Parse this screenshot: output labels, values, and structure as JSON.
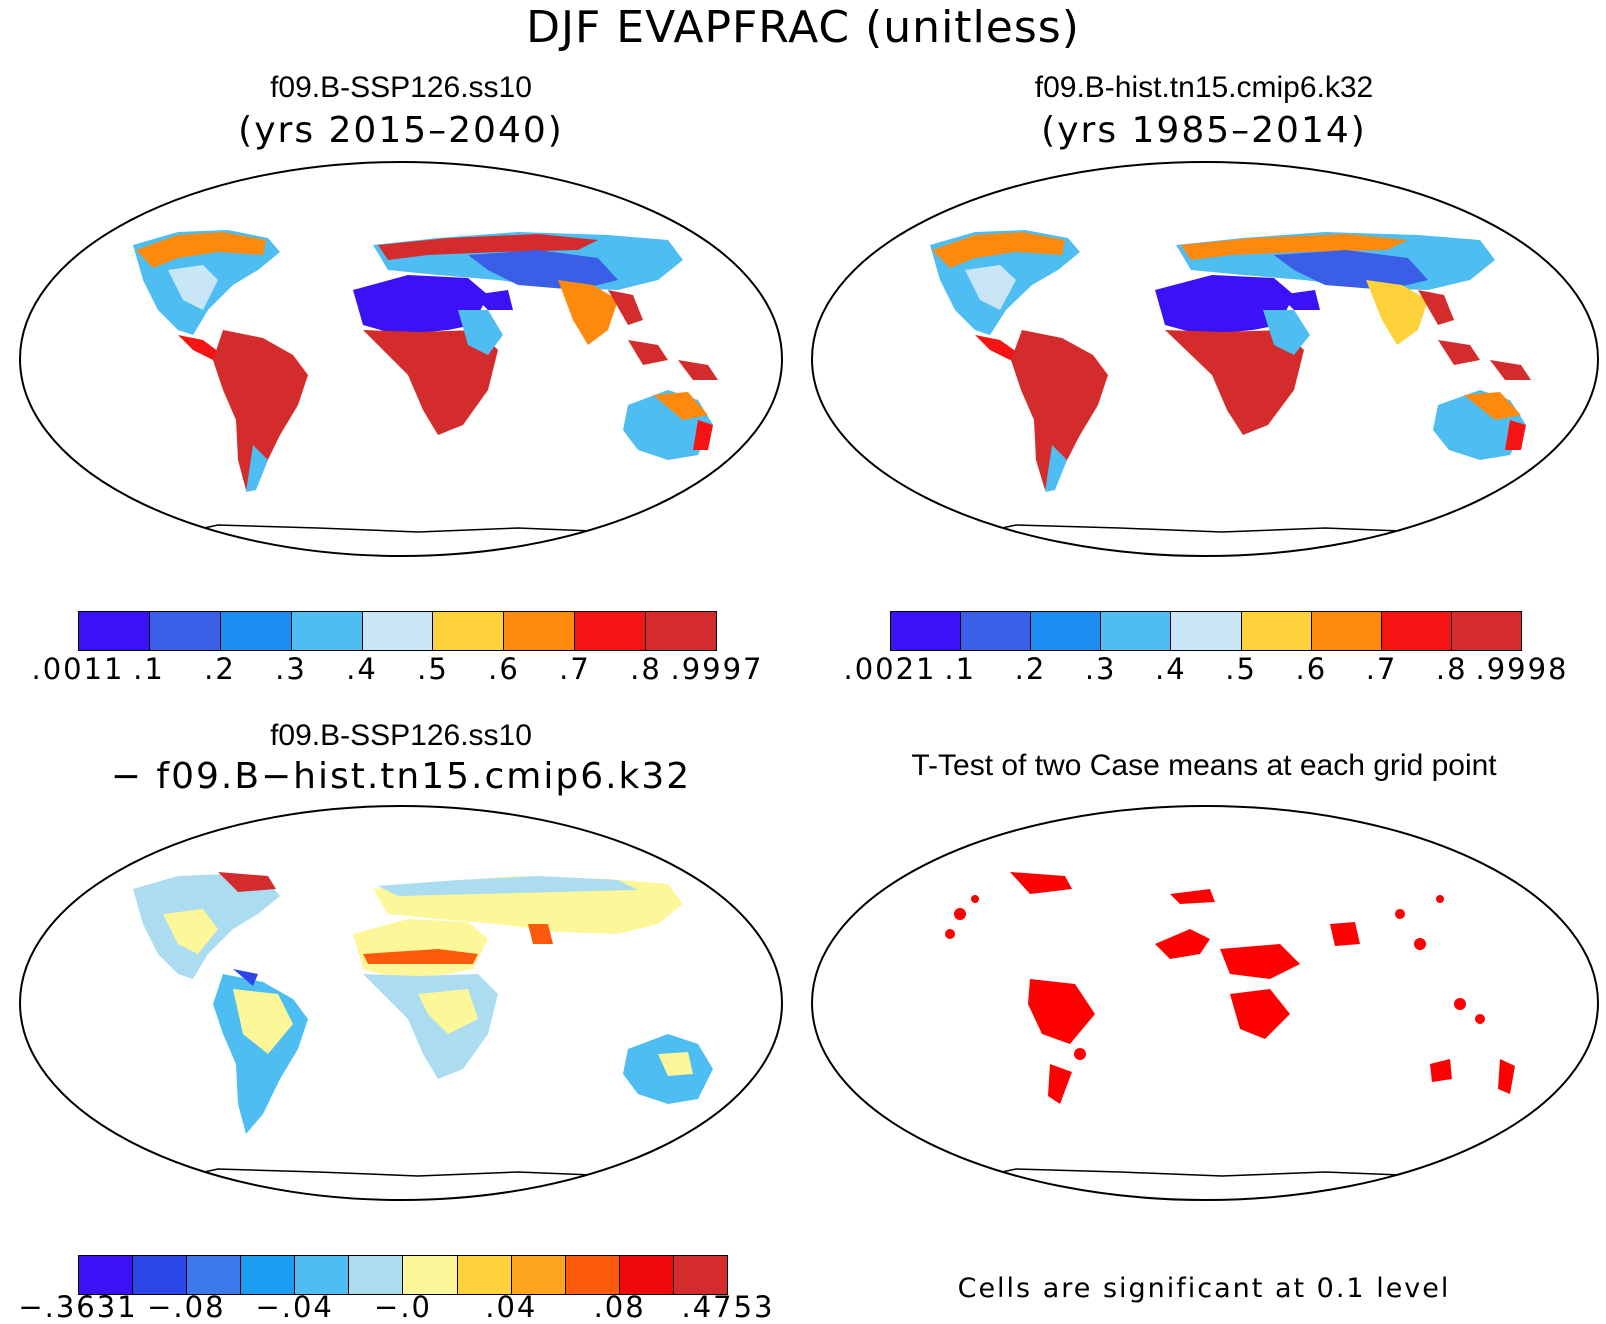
{
  "figure": {
    "title": "DJF EVAPFRAC (unitless)"
  },
  "panels": [
    {
      "id": "case",
      "title": "f09.B-SSP126.ss10",
      "subtitle": "(yrs 2015–2040)",
      "colorbar": {
        "colors": [
          "#3a12f5",
          "#3a5fe6",
          "#1a8ef2",
          "#4dbdf2",
          "#c8e6f5",
          "#fdd23a",
          "#fd8a0c",
          "#f51414",
          "#d42c2c"
        ],
        "labels": [
          ".0011",
          ".1",
          ".2",
          ".3",
          ".4",
          ".5",
          ".6",
          ".7",
          ".8",
          ".9997"
        ]
      }
    },
    {
      "id": "reference",
      "title": "f09.B-hist.tn15.cmip6.k32",
      "subtitle": "(yrs 1985–2014)",
      "colorbar": {
        "colors": [
          "#3a12f5",
          "#3a5fe6",
          "#1a8ef2",
          "#4dbdf2",
          "#c8e6f5",
          "#fdd23a",
          "#fd8a0c",
          "#f51414",
          "#d42c2c"
        ],
        "labels": [
          ".0021",
          ".1",
          ".2",
          ".3",
          ".4",
          ".5",
          ".6",
          ".7",
          ".8",
          ".9998"
        ]
      }
    },
    {
      "id": "difference",
      "title": "f09.B-SSP126.ss10",
      "subtitle": "− f09.B−hist.tn15.cmip6.k32",
      "colorbar": {
        "colors": [
          "#3a12f5",
          "#2a46e8",
          "#3a78ec",
          "#1a9cf2",
          "#4dbdf2",
          "#acdcf0",
          "#fdf79a",
          "#fdd23a",
          "#fda51c",
          "#fd5a0c",
          "#ee0a0a",
          "#d42c2c"
        ],
        "labels": [
          "−.3631",
          "−.08",
          "−.04",
          "−.0",
          ".04",
          ".08",
          ".4753"
        ]
      }
    },
    {
      "id": "ttest",
      "title": "T-Test of two Case means at each grid point",
      "note": "Cells are significant at 0.1 level",
      "significant_color": "#ff0000"
    }
  ]
}
